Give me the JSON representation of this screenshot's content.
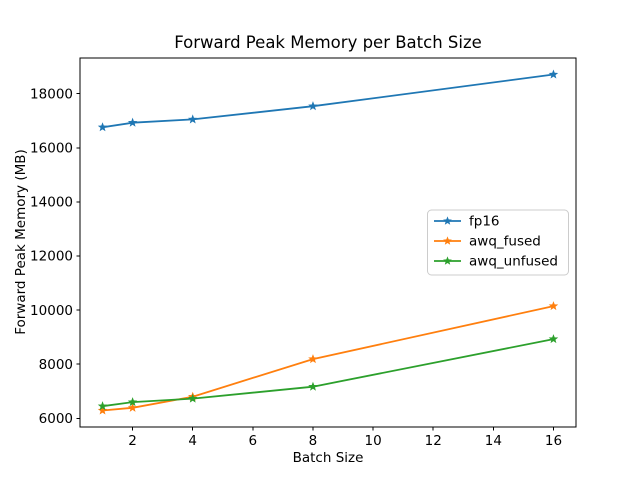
{
  "chart_data": {
    "type": "line",
    "title": "Forward Peak Memory per Batch Size",
    "xlabel": "Batch Size",
    "ylabel": "Forward Peak Memory (MB)",
    "x": [
      1,
      2,
      4,
      8,
      16
    ],
    "series": [
      {
        "name": "fp16",
        "color": "#1f77b4",
        "marker": "star",
        "values": [
          16760,
          16930,
          17050,
          17540,
          18710
        ]
      },
      {
        "name": "awq_fused",
        "color": "#ff7f0e",
        "marker": "star",
        "values": [
          6290,
          6390,
          6800,
          8190,
          10150
        ]
      },
      {
        "name": "awq_unfused",
        "color": "#2ca02c",
        "marker": "star",
        "values": [
          6450,
          6600,
          6730,
          7170,
          8930
        ]
      }
    ],
    "xticks": [
      2,
      4,
      6,
      8,
      10,
      12,
      14,
      16
    ],
    "yticks": [
      6000,
      8000,
      10000,
      12000,
      14000,
      16000,
      18000
    ],
    "xlim": [
      0.25,
      16.75
    ],
    "ylim": [
      5680,
      19320
    ],
    "grid": false,
    "legend": {
      "position": "center-right",
      "entries": [
        "fp16",
        "awq_fused",
        "awq_unfused"
      ]
    },
    "colors": {
      "background": "#ffffff",
      "spine": "#000000",
      "text": "#000000",
      "legend_border": "#cccccc"
    }
  }
}
